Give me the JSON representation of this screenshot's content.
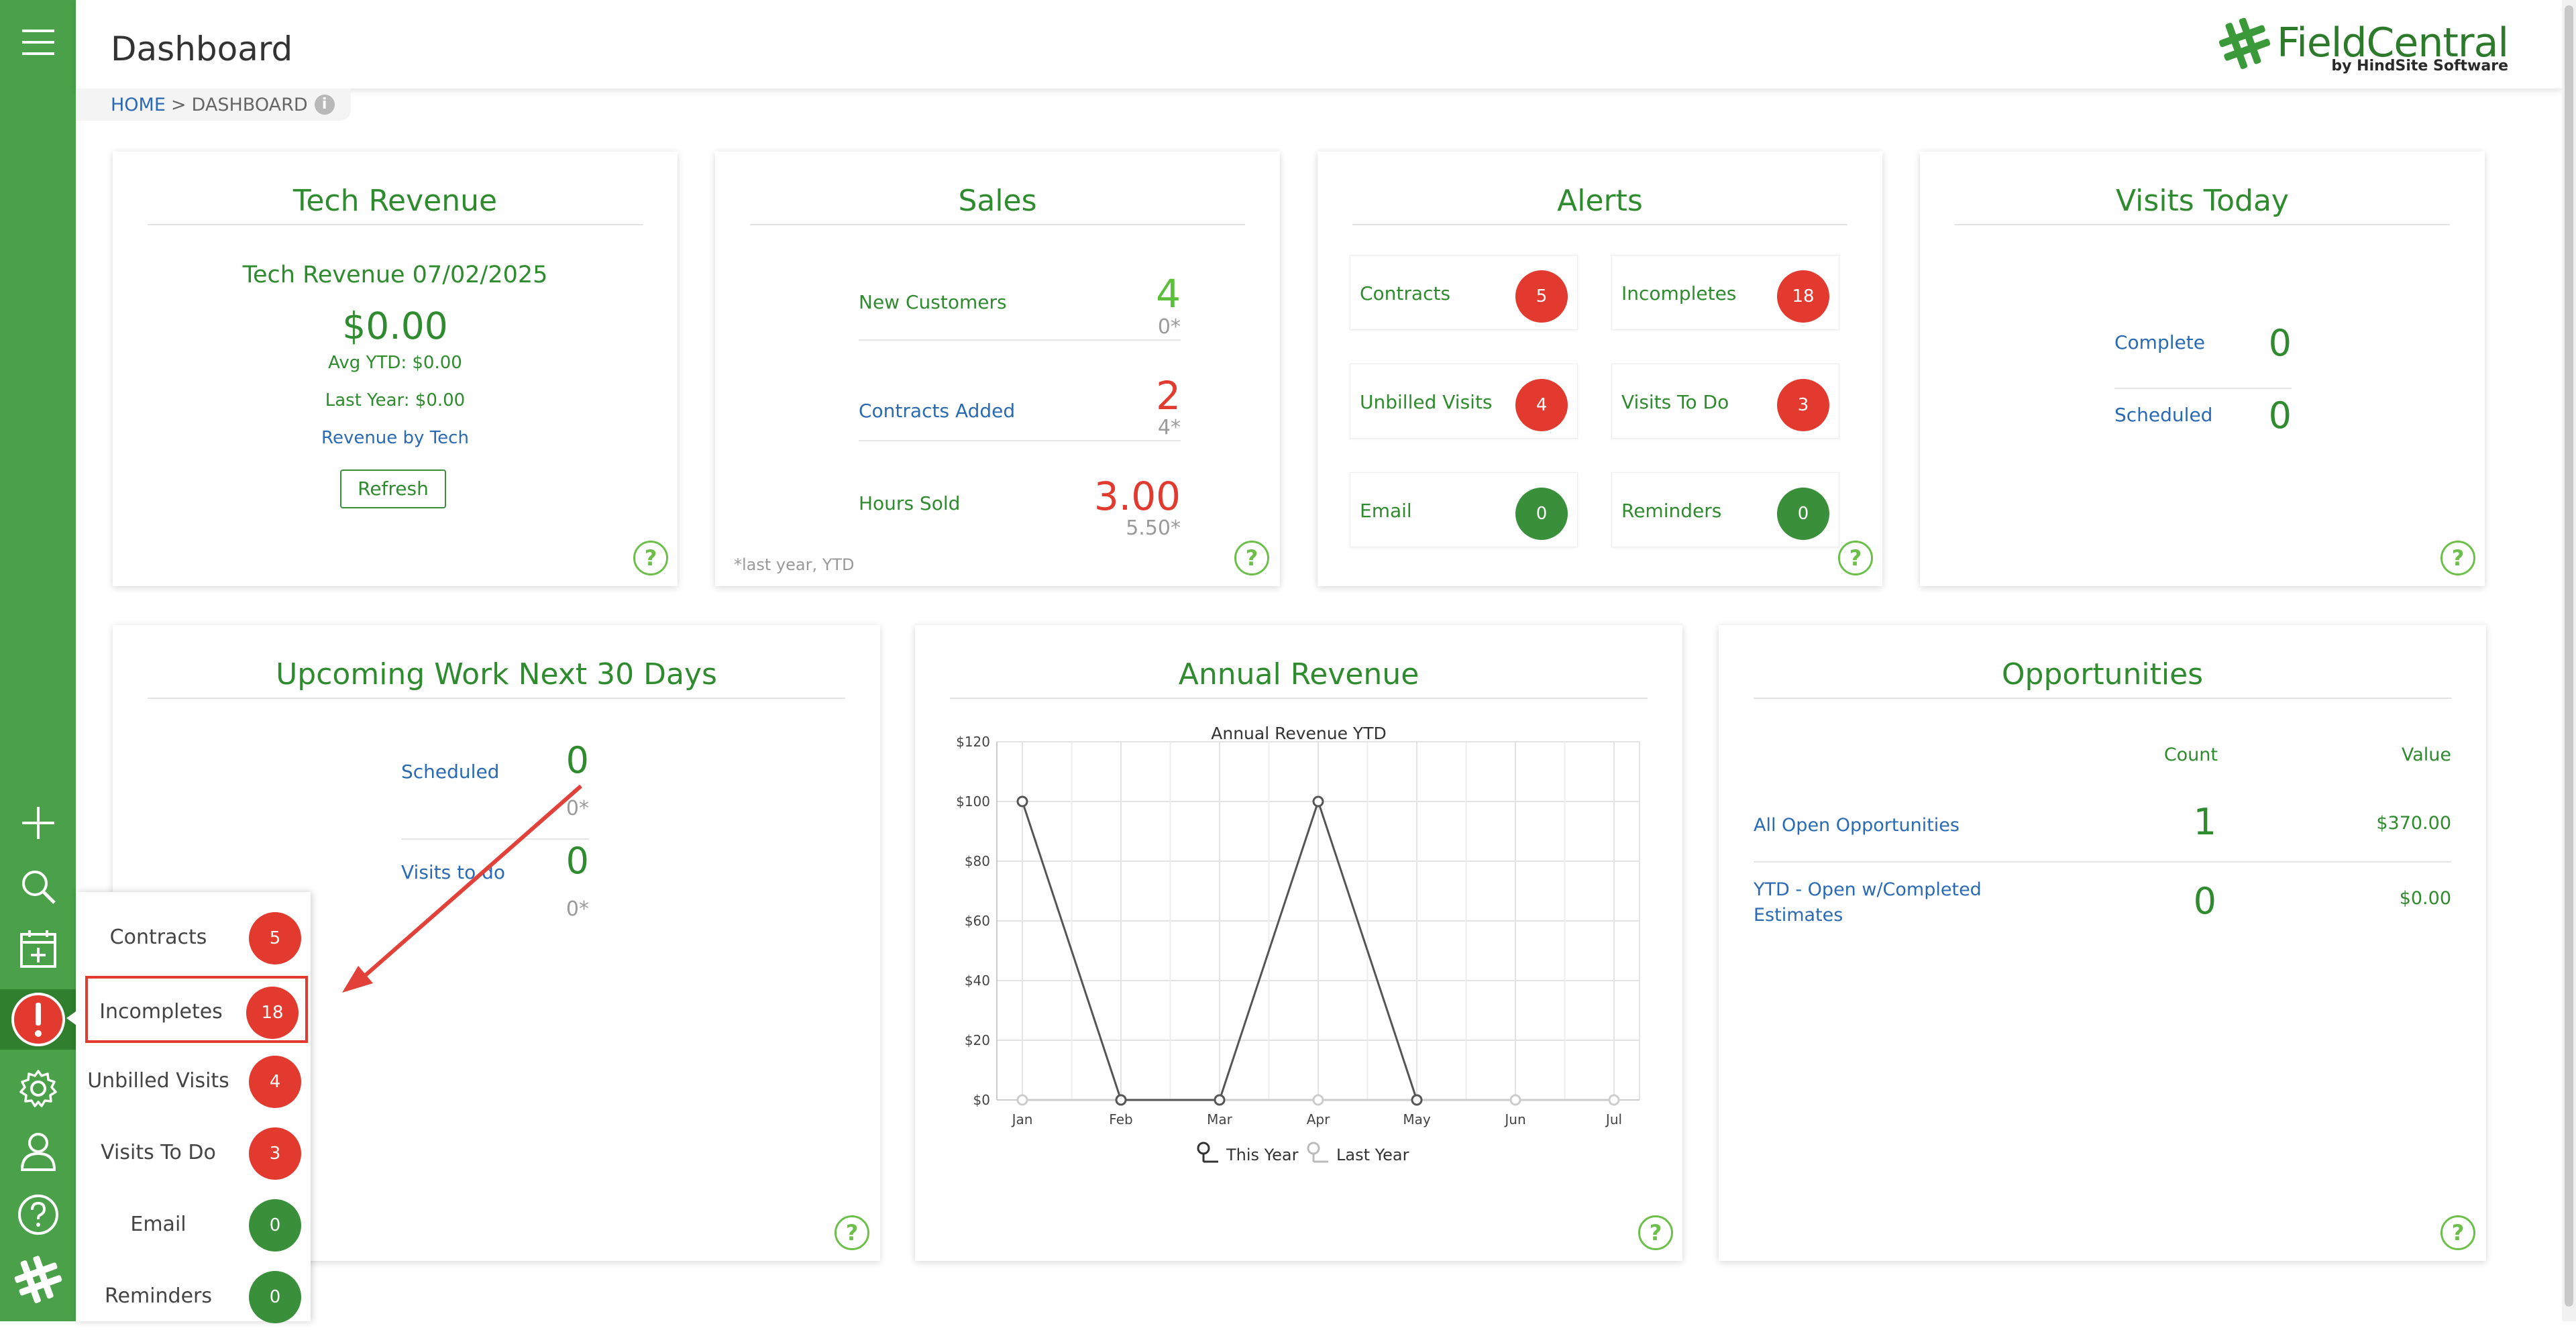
{
  "header": {
    "title": "Dashboard",
    "logo_text": "FieldCentral",
    "logo_sub": "by HindSite Software"
  },
  "breadcrumb": {
    "home": "HOME",
    "sep": ">",
    "current": "DASHBOARD",
    "info": "i"
  },
  "sidebar": {
    "icons": [
      "menu-icon",
      "plus-icon",
      "search-icon",
      "calendar-add-icon",
      "alert-icon",
      "gear-icon",
      "user-icon",
      "help-icon",
      "fieldcentral-logo-icon"
    ]
  },
  "tech_revenue": {
    "title": "Tech Revenue",
    "subtitle": "Tech Revenue 07/02/2025",
    "amount": "$0.00",
    "avg_ytd": "Avg YTD: $0.00",
    "last_year": "Last Year: $0.00",
    "link": "Revenue by Tech",
    "refresh": "Refresh"
  },
  "sales": {
    "title": "Sales",
    "rows": [
      {
        "label": "New Customers",
        "value": "4",
        "prev": "0*",
        "value_color": "#5cbf3a"
      },
      {
        "label": "Contracts Added",
        "value": "2",
        "prev": "4*",
        "value_color": "#e23a2f"
      },
      {
        "label": "Hours Sold",
        "value": "3.00",
        "prev": "5.50*",
        "value_color": "#e23a2f"
      }
    ],
    "footnote": "*last year, YTD"
  },
  "alerts": {
    "title": "Alerts",
    "items": [
      {
        "label": "Contracts",
        "count": "5",
        "color": "red"
      },
      {
        "label": "Incompletes",
        "count": "18",
        "color": "red"
      },
      {
        "label": "Unbilled Visits",
        "count": "4",
        "color": "red"
      },
      {
        "label": "Visits To Do",
        "count": "3",
        "color": "red"
      },
      {
        "label": "Email",
        "count": "0",
        "color": "green"
      },
      {
        "label": "Reminders",
        "count": "0",
        "color": "green"
      }
    ]
  },
  "visits_today": {
    "title": "Visits Today",
    "rows": [
      {
        "label": "Complete",
        "value": "0"
      },
      {
        "label": "Scheduled",
        "value": "0"
      }
    ]
  },
  "upcoming": {
    "title": "Upcoming Work Next 30 Days",
    "rows": [
      {
        "label": "Scheduled",
        "value": "0",
        "prev": "0*"
      },
      {
        "label": "Visits to do",
        "value": "0",
        "prev": "0*"
      }
    ]
  },
  "annual_revenue": {
    "title": "Annual Revenue",
    "legend_this": "This Year",
    "legend_last": "Last Year"
  },
  "chart_data": {
    "type": "line",
    "title": "Annual Revenue YTD",
    "categories": [
      "Jan",
      "Feb",
      "Mar",
      "Apr",
      "May",
      "Jun",
      "Jul"
    ],
    "series": [
      {
        "name": "This Year",
        "values": [
          100,
          0,
          0,
          100,
          0,
          null,
          null
        ],
        "color": "#555555"
      },
      {
        "name": "Last Year",
        "values": [
          0,
          0,
          0,
          0,
          0,
          0,
          0
        ],
        "color": "#cccccc"
      }
    ],
    "yticks": [
      "$0",
      "$20",
      "$40",
      "$60",
      "$80",
      "$100",
      "$120"
    ],
    "ylim": [
      0,
      120
    ],
    "grid": true,
    "legend": "bottom"
  },
  "opportunities": {
    "title": "Opportunities",
    "col_count": "Count",
    "col_value": "Value",
    "rows": [
      {
        "label": "All Open Opportunities",
        "count": "1",
        "value": "$370.00"
      },
      {
        "label": "YTD - Open w/Completed Estimates",
        "count": "0",
        "value": "$0.00"
      }
    ]
  },
  "alerts_popup": {
    "items": [
      {
        "label": "Contracts",
        "count": "5",
        "color": "red"
      },
      {
        "label": "Incompletes",
        "count": "18",
        "color": "red"
      },
      {
        "label": "Unbilled Visits",
        "count": "4",
        "color": "red"
      },
      {
        "label": "Visits To Do",
        "count": "3",
        "color": "red"
      },
      {
        "label": "Email",
        "count": "0",
        "color": "green"
      },
      {
        "label": "Reminders",
        "count": "0",
        "color": "green"
      }
    ],
    "selected": "Incompletes"
  },
  "help_label": "?"
}
